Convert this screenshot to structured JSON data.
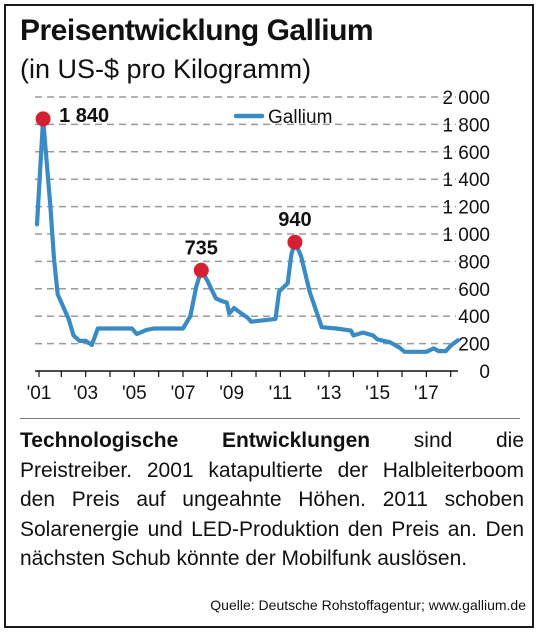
{
  "title": "Preisentwicklung Gallium",
  "subtitle": "(in US-$ pro Kilogramm)",
  "text": {
    "bold": "Technologische Entwicklungen",
    "rest": " sind die Preistreiber. 2001 katapultierte der Halbleiterboom den Preis auf ungeahnte Höhen. 2011 schoben Solarenergie und LED-Produktion den Preis an. Den nächsten Schub könnte der Mobilfunk auslösen."
  },
  "source": "Quelle: Deutsche Rohstoffagentur; www.gallium.de",
  "colors": {
    "line": "#3a8bc4",
    "marker": "#d51f33",
    "grid": "#9a9a9a",
    "text": "#111111"
  },
  "chart_data": {
    "type": "line",
    "title": "Preisentwicklung Gallium",
    "subtitle": "(in US-$ pro Kilogramm)",
    "xlabel": "",
    "ylabel": "",
    "xlim": [
      2001.0,
      2018.3
    ],
    "ylim": [
      0,
      2000
    ],
    "x_ticks": [
      2001,
      2003,
      2005,
      2007,
      2009,
      2011,
      2013,
      2015,
      2017
    ],
    "x_tick_labels": [
      "'01",
      "'03",
      "'05",
      "'07",
      "'09",
      "'11",
      "'13",
      "'15",
      "'17"
    ],
    "y_ticks": [
      0,
      200,
      400,
      600,
      800,
      1000,
      1200,
      1400,
      1600,
      1800,
      2000
    ],
    "y_tick_labels": [
      "0",
      "200",
      "400",
      "600",
      "800",
      "1 000",
      "1 200",
      "1 400",
      "1 600",
      "1 800",
      "2 000"
    ],
    "grid": "horizontal dashed",
    "legend_position": "top",
    "series": [
      {
        "name": "Gallium",
        "points": [
          [
            2001.0,
            1070
          ],
          [
            2001.25,
            1840
          ],
          [
            2001.55,
            1200
          ],
          [
            2001.7,
            820
          ],
          [
            2001.85,
            560
          ],
          [
            2002.3,
            380
          ],
          [
            2002.5,
            260
          ],
          [
            2002.75,
            220
          ],
          [
            2003.0,
            220
          ],
          [
            2003.25,
            190
          ],
          [
            2003.5,
            310
          ],
          [
            2004.0,
            310
          ],
          [
            2004.5,
            310
          ],
          [
            2004.9,
            310
          ],
          [
            2005.1,
            270
          ],
          [
            2005.5,
            300
          ],
          [
            2005.8,
            310
          ],
          [
            2006.5,
            310
          ],
          [
            2007.0,
            310
          ],
          [
            2007.3,
            400
          ],
          [
            2007.55,
            620
          ],
          [
            2007.75,
            735
          ],
          [
            2008.0,
            660
          ],
          [
            2008.35,
            530
          ],
          [
            2008.6,
            510
          ],
          [
            2008.8,
            500
          ],
          [
            2008.9,
            420
          ],
          [
            2009.1,
            460
          ],
          [
            2009.4,
            420
          ],
          [
            2009.65,
            390
          ],
          [
            2009.8,
            360
          ],
          [
            2010.3,
            370
          ],
          [
            2010.8,
            380
          ],
          [
            2010.95,
            580
          ],
          [
            2011.3,
            640
          ],
          [
            2011.45,
            850
          ],
          [
            2011.6,
            940
          ],
          [
            2011.85,
            840
          ],
          [
            2012.2,
            580
          ],
          [
            2012.7,
            320
          ],
          [
            2013.3,
            310
          ],
          [
            2013.9,
            295
          ],
          [
            2014.0,
            260
          ],
          [
            2014.4,
            280
          ],
          [
            2014.8,
            260
          ],
          [
            2015.0,
            230
          ],
          [
            2015.5,
            210
          ],
          [
            2015.9,
            170
          ],
          [
            2016.1,
            140
          ],
          [
            2016.6,
            140
          ],
          [
            2017.0,
            140
          ],
          [
            2017.3,
            165
          ],
          [
            2017.5,
            145
          ],
          [
            2017.8,
            145
          ],
          [
            2018.0,
            185
          ],
          [
            2018.3,
            225
          ]
        ]
      }
    ],
    "annotations": [
      {
        "x": 2001.25,
        "y": 1840,
        "label": "1 840"
      },
      {
        "x": 2007.75,
        "y": 735,
        "label": "735"
      },
      {
        "x": 2011.6,
        "y": 940,
        "label": "940"
      }
    ]
  }
}
